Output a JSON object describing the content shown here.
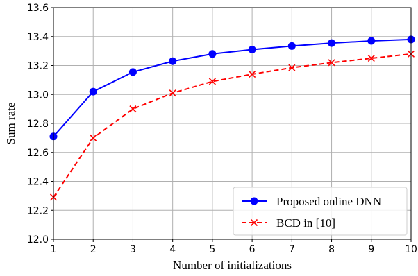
{
  "chart_data": {
    "type": "line",
    "title": "",
    "xlabel": "Number of initializations",
    "ylabel": "Sum rate",
    "xlim": [
      1,
      10
    ],
    "ylim": [
      12.0,
      13.6
    ],
    "x": [
      1,
      2,
      3,
      4,
      5,
      6,
      7,
      8,
      9,
      10
    ],
    "xticks": [
      "1",
      "2",
      "3",
      "4",
      "5",
      "6",
      "7",
      "8",
      "9",
      "10"
    ],
    "yticks": [
      "12.0",
      "12.2",
      "12.4",
      "12.6",
      "12.8",
      "13.0",
      "13.2",
      "13.4",
      "13.6"
    ],
    "grid": true,
    "legend_position": "lower-right",
    "series": [
      {
        "name": "Proposed online DNN",
        "color": "#0000ff",
        "line_style": "solid",
        "marker": "circle",
        "values": [
          12.71,
          13.02,
          13.155,
          13.23,
          13.28,
          13.31,
          13.335,
          13.355,
          13.37,
          13.38
        ]
      },
      {
        "name": "BCD in [10]",
        "color": "#ff0000",
        "line_style": "dashed",
        "marker": "x",
        "values": [
          12.29,
          12.7,
          12.9,
          13.01,
          13.09,
          13.14,
          13.185,
          13.22,
          13.25,
          13.28
        ]
      }
    ]
  }
}
